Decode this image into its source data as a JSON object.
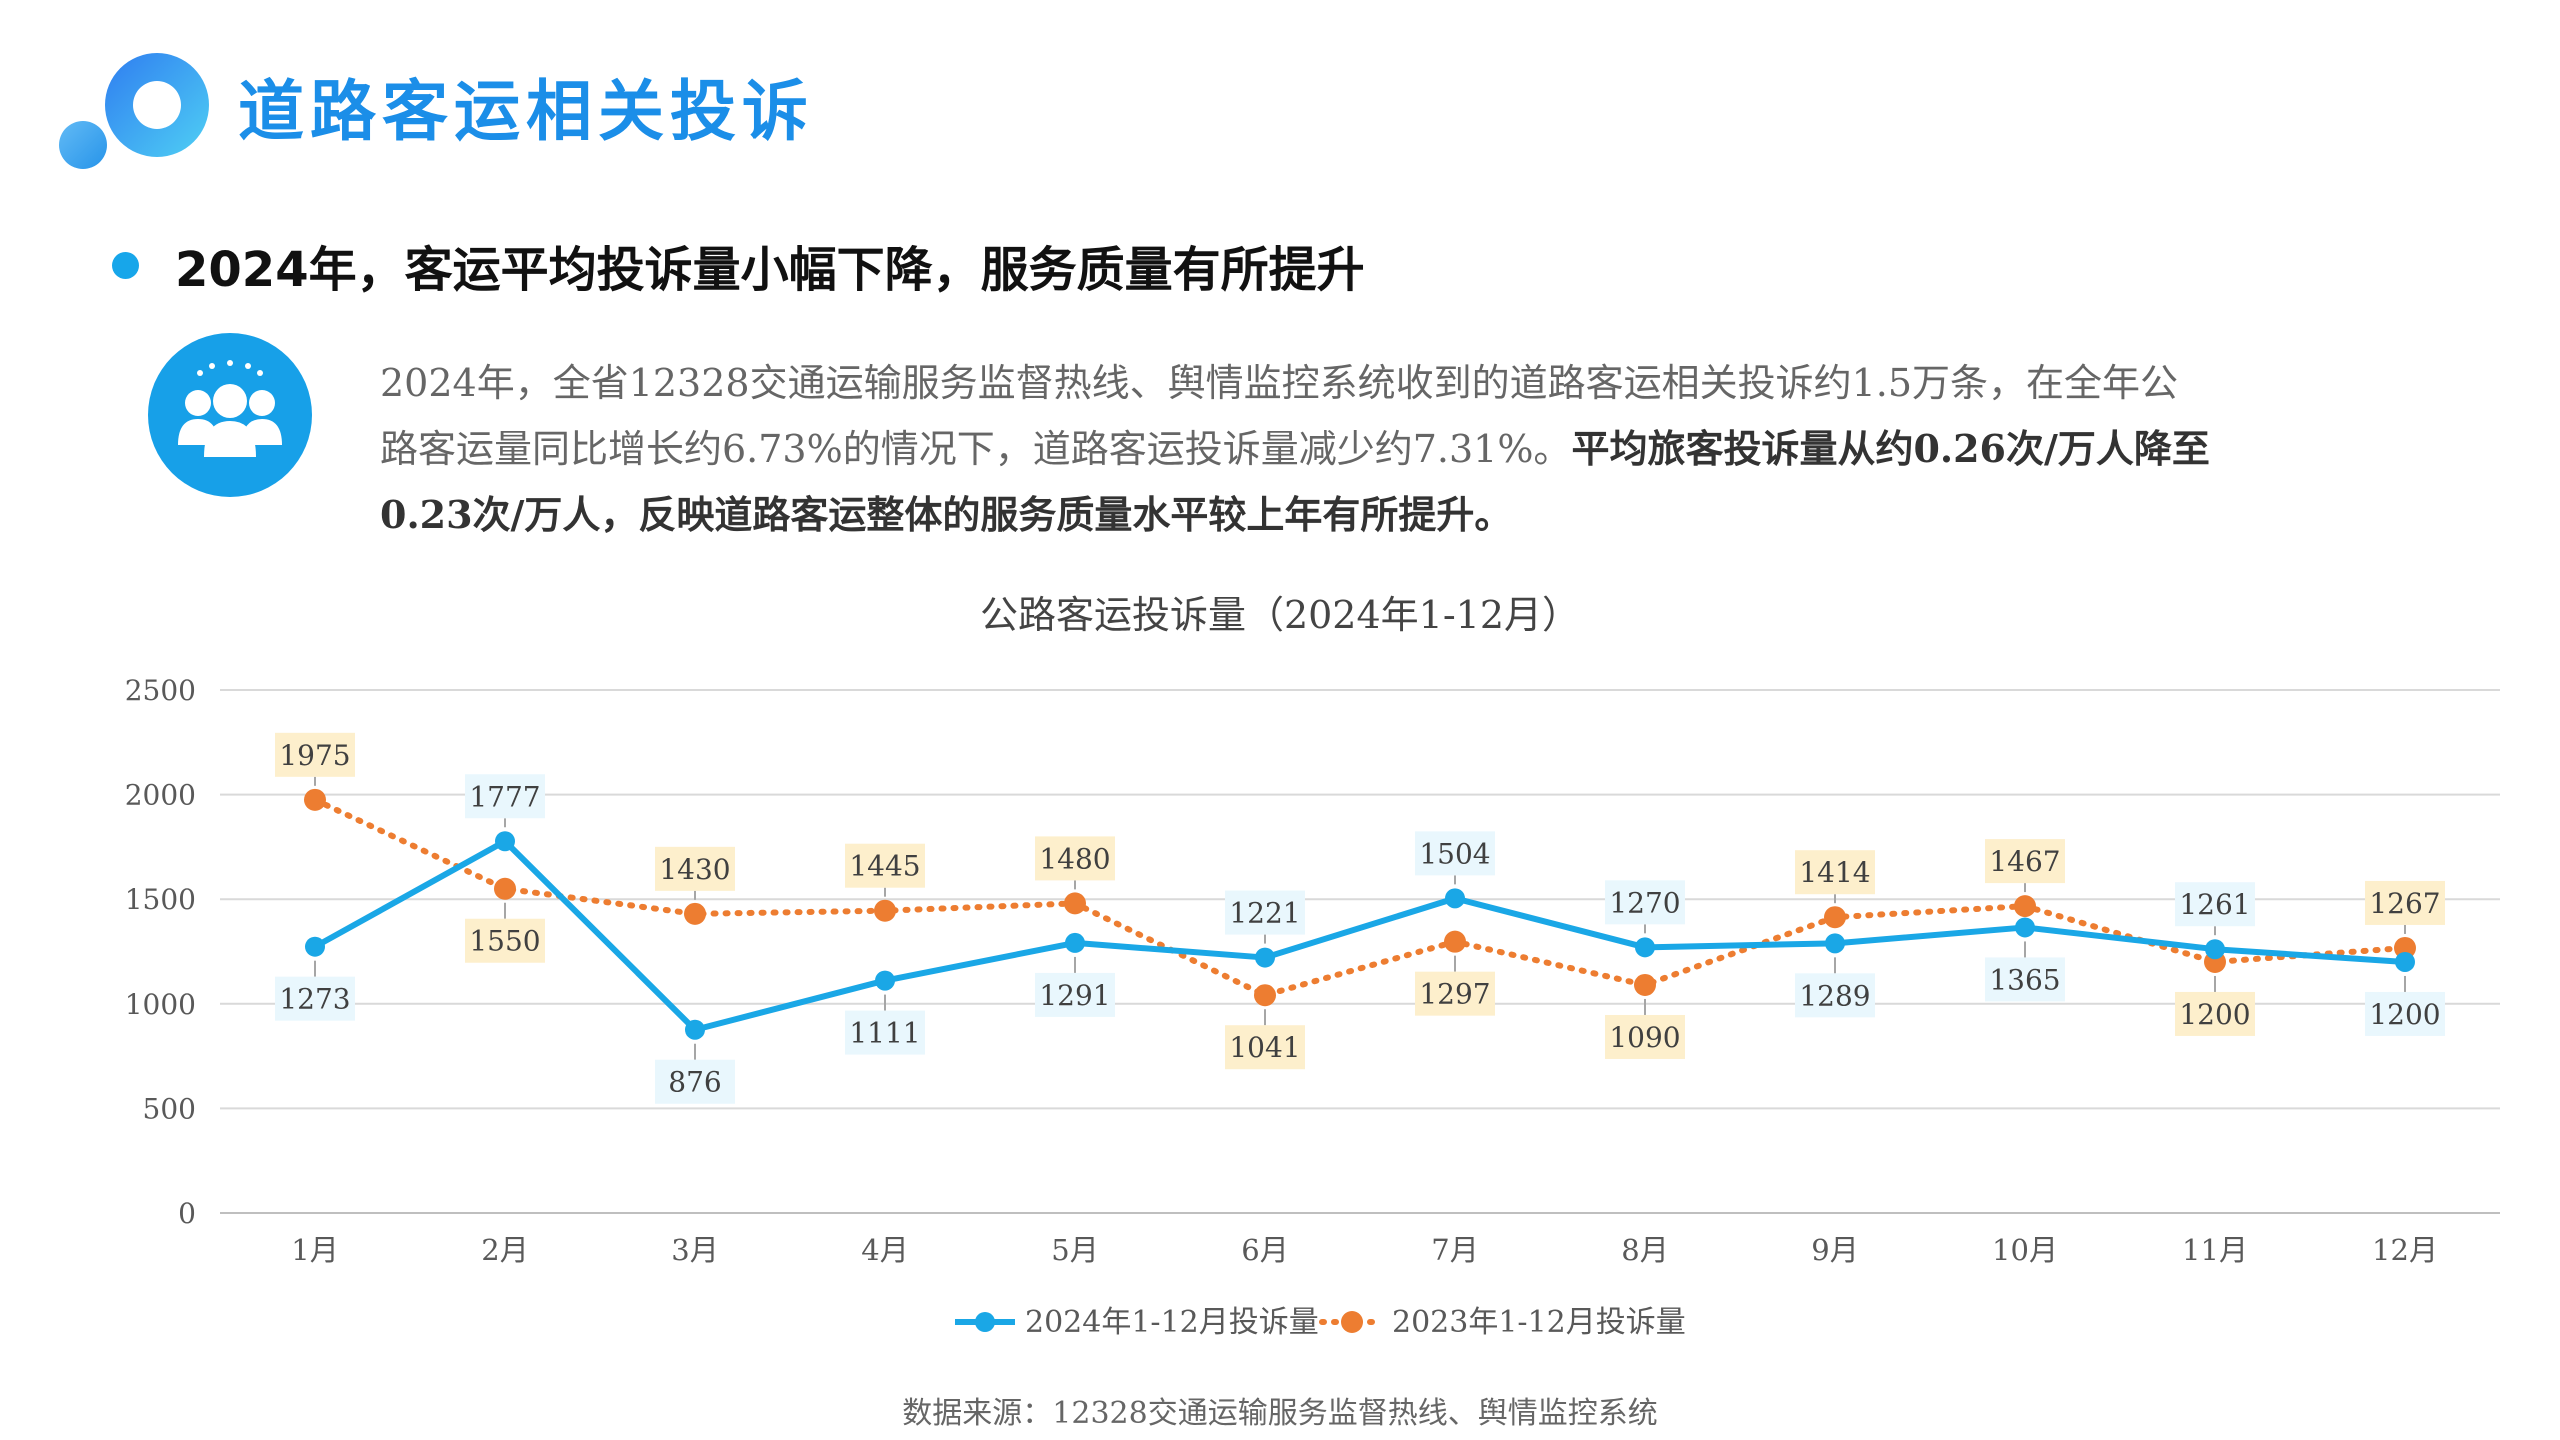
{
  "header": {
    "title": "道路客运相关投诉"
  },
  "headline": "2024年，客运平均投诉量小幅下降，服务质量有所提升",
  "description": {
    "line1": "2024年，全省12328交通运输服务监督热线、舆情监控系统收到的道路客运相关投诉约1.5万条，在全年公",
    "line2a": "路客运量同比增长约6.73%的情况下，道路客运投诉量减少约7.31%。",
    "line2b": "平均旅客投诉量从约0.26次/万人降至",
    "line3": "0.23次/万人，反映道路客运整体的服务质量水平较上年有所提升。"
  },
  "source": "数据来源：12328交通运输服务监督热线、舆情监控系统",
  "colors": {
    "primary": "#1b8ee8",
    "series2024": "#1aa7e6",
    "series2023": "#ed7d31",
    "label2024_bg": "#e9f7fd",
    "label2023_bg": "#fdefcc"
  },
  "icons": {
    "logo": "ring-logo-icon",
    "people": "group-people-icon",
    "bullet": "bullet-dot-icon"
  },
  "chart_data": {
    "type": "line",
    "title": "公路客运投诉量（2024年1-12月）",
    "xlabel": "",
    "ylabel": "",
    "categories": [
      "1月",
      "2月",
      "3月",
      "4月",
      "5月",
      "6月",
      "7月",
      "8月",
      "9月",
      "10月",
      "11月",
      "12月"
    ],
    "ylim": [
      0,
      2500
    ],
    "yticks": [
      "0",
      "500",
      "1000",
      "1500",
      "2000",
      "2500"
    ],
    "grid": true,
    "legend_position": "bottom",
    "series": [
      {
        "name": "2024年1-12月投诉量",
        "values": [
          1273,
          1777,
          876,
          1111,
          1291,
          1221,
          1504,
          1270,
          1289,
          1365,
          1261,
          1200
        ],
        "style": "solid"
      },
      {
        "name": "2023年1-12月投诉量",
        "values": [
          1975,
          1550,
          1430,
          1445,
          1480,
          1041,
          1297,
          1090,
          1414,
          1467,
          1200,
          1267
        ],
        "style": "dotted"
      }
    ]
  }
}
